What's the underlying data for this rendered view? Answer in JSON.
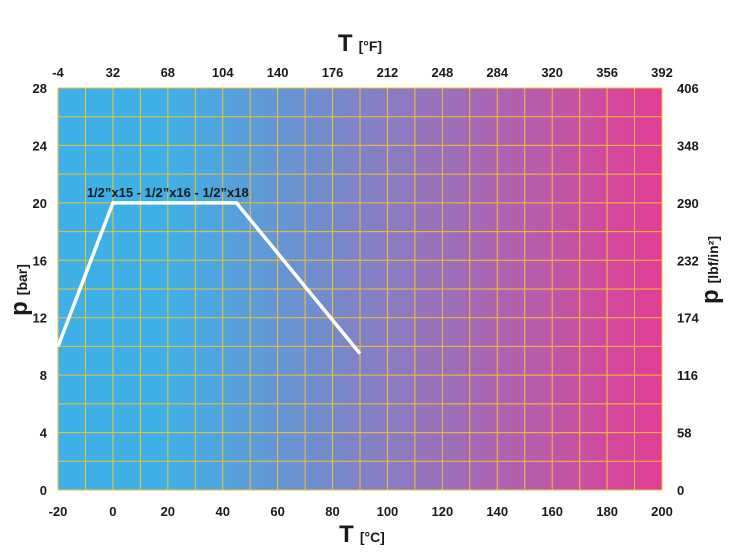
{
  "chart_data": {
    "type": "line",
    "x_axis_bottom": {
      "symbol": "T",
      "unit": "[°C]",
      "range": [
        -20,
        200
      ],
      "ticks": [
        -20,
        0,
        20,
        40,
        60,
        80,
        100,
        120,
        140,
        160,
        180,
        200
      ]
    },
    "x_axis_top": {
      "symbol": "T",
      "unit": "[°F]",
      "ticks": [
        -4,
        32,
        68,
        104,
        140,
        176,
        212,
        248,
        284,
        320,
        356,
        392
      ]
    },
    "y_axis_left": {
      "symbol": "p",
      "unit": "[bar]",
      "range": [
        0,
        28
      ],
      "ticks": [
        0,
        4,
        8,
        12,
        16,
        20,
        24,
        28
      ]
    },
    "y_axis_right": {
      "symbol": "p",
      "unit": "[lbf/in²]",
      "ticks": [
        0,
        58,
        116,
        174,
        232,
        290,
        348,
        406
      ]
    },
    "grid": true,
    "background_gradient": {
      "from": "#3fb0e6",
      "to": "#e33d96"
    },
    "grid_color": "#f2c230",
    "line_color": "#ffffff",
    "series": [
      {
        "name": "1/2”x15 - 1/2”x16 - 1/2”x18",
        "x": [
          -20,
          0,
          45,
          90
        ],
        "y": [
          10,
          20,
          20,
          9.5
        ]
      }
    ]
  }
}
